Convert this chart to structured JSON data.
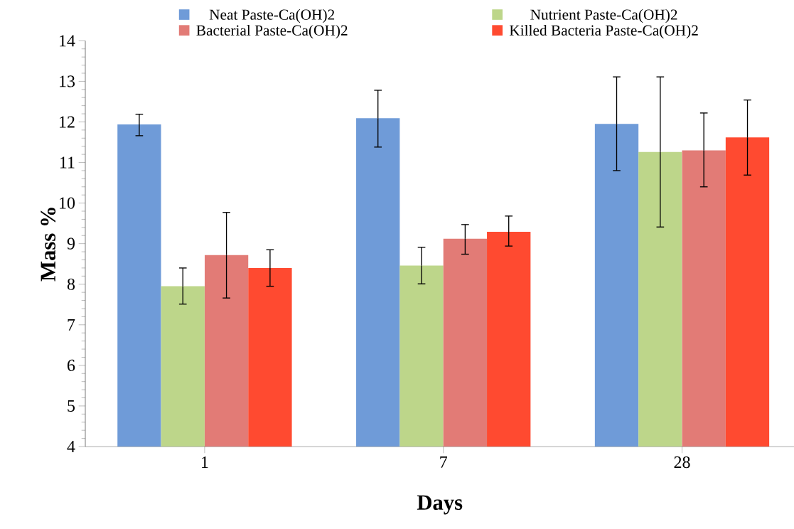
{
  "chart_data": {
    "type": "bar",
    "xlabel": "Days",
    "ylabel": "Mass %",
    "categories": [
      "1",
      "7",
      "28"
    ],
    "series": [
      {
        "name": "Neat Paste-Ca(OH)2",
        "color": "#6f9bd8",
        "values": [
          11.94,
          12.09,
          11.95
        ],
        "errors": [
          [
            11.66,
            12.19
          ],
          [
            11.38,
            12.78
          ],
          [
            10.8,
            13.11
          ]
        ]
      },
      {
        "name": "Nutrient Paste-Ca(OH)2",
        "color": "#bdd68a",
        "values": [
          7.95,
          8.46,
          11.26
        ],
        "errors": [
          [
            7.51,
            8.4
          ],
          [
            8.01,
            8.91
          ],
          [
            9.41,
            13.11
          ]
        ]
      },
      {
        "name": "Bacterial Paste-Ca(OH)2",
        "color": "#e27b76",
        "values": [
          8.72,
          9.12,
          11.3
        ],
        "errors": [
          [
            7.66,
            9.77
          ],
          [
            8.74,
            9.47
          ],
          [
            10.4,
            12.22
          ]
        ]
      },
      {
        "name": "Killed Bacteria Paste-Ca(OH)2",
        "color": "#ff4a30",
        "values": [
          8.4,
          9.29,
          11.62
        ],
        "errors": [
          [
            7.95,
            8.85
          ],
          [
            8.94,
            9.68
          ],
          [
            10.69,
            12.54
          ]
        ]
      }
    ],
    "ylim": [
      4,
      14
    ],
    "yticks": [
      4,
      5,
      6,
      7,
      8,
      9,
      10,
      11,
      12,
      13,
      14
    ],
    "legend": "top",
    "grid": false
  }
}
